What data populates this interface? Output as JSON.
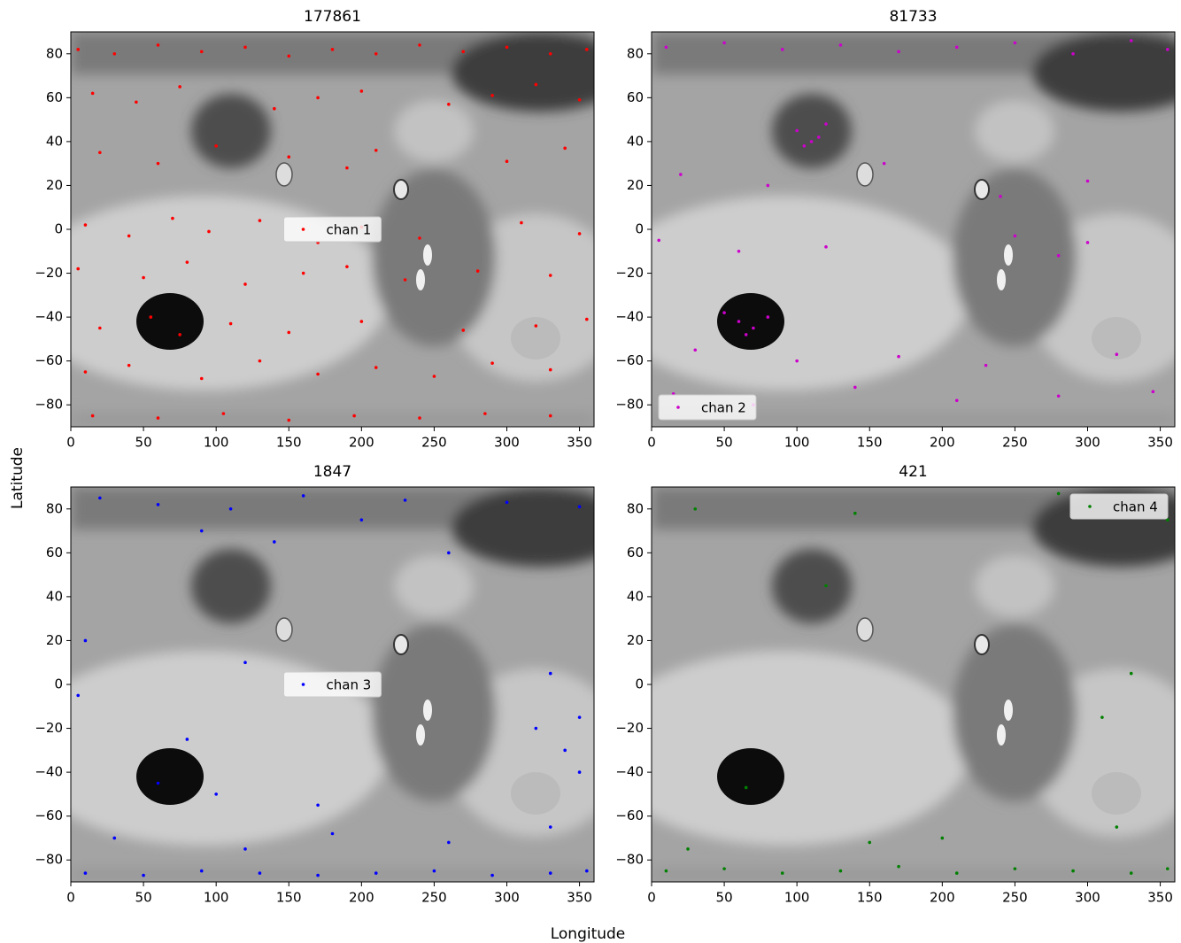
{
  "xlabel": "Longitude",
  "ylabel": "Latitude",
  "chart_data": [
    {
      "type": "scatter",
      "title": "177861",
      "legend": "center",
      "xlim": [
        0,
        360
      ],
      "ylim": [
        -90,
        90
      ],
      "xticks": [
        0,
        50,
        100,
        150,
        200,
        250,
        300,
        350
      ],
      "yticks": [
        {
          "value": -80,
          "label": "−80"
        },
        {
          "value": -60,
          "label": "−60"
        },
        {
          "value": -40,
          "label": "−40"
        },
        {
          "value": -20,
          "label": "−20"
        },
        0,
        20,
        40,
        60,
        80
      ],
      "series": [
        {
          "name": "chan 1",
          "color": "#ff0000",
          "x": [
            5,
            30,
            60,
            90,
            120,
            150,
            180,
            210,
            240,
            270,
            300,
            330,
            355,
            15,
            45,
            75,
            140,
            170,
            200,
            260,
            290,
            320,
            350,
            20,
            60,
            100,
            150,
            190,
            210,
            300,
            340,
            10,
            40,
            70,
            95,
            130,
            170,
            200,
            240,
            310,
            350,
            5,
            50,
            80,
            120,
            160,
            190,
            230,
            280,
            330,
            20,
            55,
            75,
            110,
            150,
            200,
            270,
            320,
            355,
            10,
            40,
            90,
            130,
            170,
            210,
            250,
            290,
            330,
            15,
            60,
            105,
            150,
            195,
            240,
            285,
            330
          ],
          "y": [
            82,
            80,
            84,
            81,
            83,
            79,
            82,
            80,
            84,
            81,
            83,
            80,
            82,
            62,
            58,
            65,
            55,
            60,
            63,
            57,
            61,
            66,
            59,
            35,
            30,
            38,
            33,
            28,
            36,
            31,
            37,
            2,
            -3,
            5,
            -1,
            4,
            -6,
            1,
            -4,
            3,
            -2,
            -18,
            -22,
            -15,
            -25,
            -20,
            -17,
            -23,
            -19,
            -21,
            -45,
            -40,
            -48,
            -43,
            -47,
            -42,
            -46,
            -44,
            -41,
            -65,
            -62,
            -68,
            -60,
            -66,
            -63,
            -67,
            -61,
            -64,
            -85,
            -86,
            -84,
            -87,
            -85,
            -86,
            -84,
            -85
          ]
        }
      ]
    },
    {
      "type": "scatter",
      "title": "81733",
      "legend": "lower left",
      "xlim": [
        0,
        360
      ],
      "ylim": [
        -90,
        90
      ],
      "xticks": [
        0,
        50,
        100,
        150,
        200,
        250,
        300,
        350
      ],
      "yticks": [
        {
          "value": -80,
          "label": "−80"
        },
        {
          "value": -60,
          "label": "−60"
        },
        {
          "value": -40,
          "label": "−40"
        },
        {
          "value": -20,
          "label": "−20"
        },
        0,
        20,
        40,
        60,
        80
      ],
      "series": [
        {
          "name": "chan 2",
          "color": "#cc00cc",
          "x": [
            10,
            50,
            90,
            130,
            170,
            210,
            250,
            290,
            330,
            355,
            100,
            110,
            120,
            105,
            115,
            20,
            80,
            160,
            240,
            300,
            5,
            60,
            120,
            250,
            280,
            300,
            50,
            60,
            70,
            80,
            65,
            30,
            100,
            170,
            230,
            320,
            15,
            70,
            140,
            210,
            280,
            345
          ],
          "y": [
            83,
            85,
            82,
            84,
            81,
            83,
            85,
            80,
            86,
            82,
            45,
            40,
            48,
            38,
            42,
            25,
            20,
            30,
            15,
            22,
            -5,
            -10,
            -8,
            -3,
            -12,
            -6,
            -38,
            -42,
            -45,
            -40,
            -48,
            -55,
            -60,
            -58,
            -62,
            -57,
            -75,
            -80,
            -72,
            -78,
            -76,
            -74
          ]
        }
      ]
    },
    {
      "type": "scatter",
      "title": "1847",
      "legend": "center",
      "xlim": [
        0,
        360
      ],
      "ylim": [
        -90,
        90
      ],
      "xticks": [
        0,
        50,
        100,
        150,
        200,
        250,
        300,
        350
      ],
      "yticks": [
        {
          "value": -80,
          "label": "−80"
        },
        {
          "value": -60,
          "label": "−60"
        },
        {
          "value": -40,
          "label": "−40"
        },
        {
          "value": -20,
          "label": "−20"
        },
        0,
        20,
        40,
        60,
        80
      ],
      "series": [
        {
          "name": "chan 3",
          "color": "#0000ff",
          "x": [
            20,
            60,
            110,
            160,
            230,
            300,
            350,
            90,
            140,
            200,
            260,
            10,
            120,
            330,
            350,
            5,
            80,
            340,
            320,
            60,
            100,
            170,
            350,
            30,
            120,
            180,
            260,
            330,
            10,
            50,
            90,
            130,
            170,
            210,
            250,
            290,
            330,
            355
          ],
          "y": [
            85,
            82,
            80,
            86,
            84,
            83,
            81,
            70,
            65,
            75,
            60,
            20,
            10,
            5,
            -15,
            -5,
            -25,
            -30,
            -20,
            -45,
            -50,
            -55,
            -40,
            -70,
            -75,
            -68,
            -72,
            -65,
            -86,
            -87,
            -85,
            -86,
            -87,
            -86,
            -85,
            -87,
            -86,
            -85
          ]
        }
      ]
    },
    {
      "type": "scatter",
      "title": "421",
      "legend": "upper right",
      "xlim": [
        0,
        360
      ],
      "ylim": [
        -90,
        90
      ],
      "xticks": [
        0,
        50,
        100,
        150,
        200,
        250,
        300,
        350
      ],
      "yticks": [
        {
          "value": -80,
          "label": "−80"
        },
        {
          "value": -60,
          "label": "−60"
        },
        {
          "value": -40,
          "label": "−40"
        },
        {
          "value": -20,
          "label": "−20"
        },
        0,
        20,
        40,
        60,
        80
      ],
      "series": [
        {
          "name": "chan 4",
          "color": "#008000",
          "x": [
            30,
            140,
            280,
            355,
            120,
            330,
            310,
            65,
            10,
            50,
            90,
            130,
            170,
            210,
            250,
            290,
            330,
            355,
            25,
            150,
            200,
            320
          ],
          "y": [
            80,
            78,
            87,
            75,
            45,
            5,
            -15,
            -47,
            -85,
            -84,
            -86,
            -85,
            -83,
            -86,
            -84,
            -85,
            -86,
            -84,
            -75,
            -72,
            -70,
            -65
          ]
        }
      ]
    }
  ]
}
